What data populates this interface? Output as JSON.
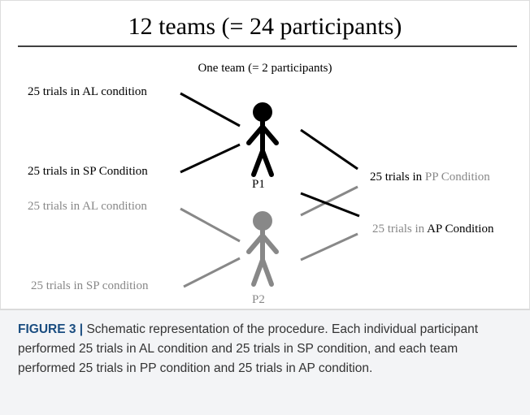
{
  "title": "12 teams (= 24 participants)",
  "subtitle": "One team (= 2 participants)",
  "left_labels": [
    "25 trials in AL condition",
    "25 trials in SP Condition",
    "25 trials in AL condition",
    "25 trials in SP condition"
  ],
  "participants": [
    "P1",
    "P2"
  ],
  "right_labels": [
    {
      "prefix": "25 trials in ",
      "condition": "PP Condition"
    },
    {
      "prefix": "25 trials in ",
      "condition": "AP Condition"
    }
  ],
  "caption": {
    "label": "FIGURE 3 |",
    "text": "Schematic representation of the procedure. Each individual participant performed 25 trials in AL condition and 25 trials in SP condition, and each team performed 25 trials in PP condition and 25 trials in AP condition."
  }
}
